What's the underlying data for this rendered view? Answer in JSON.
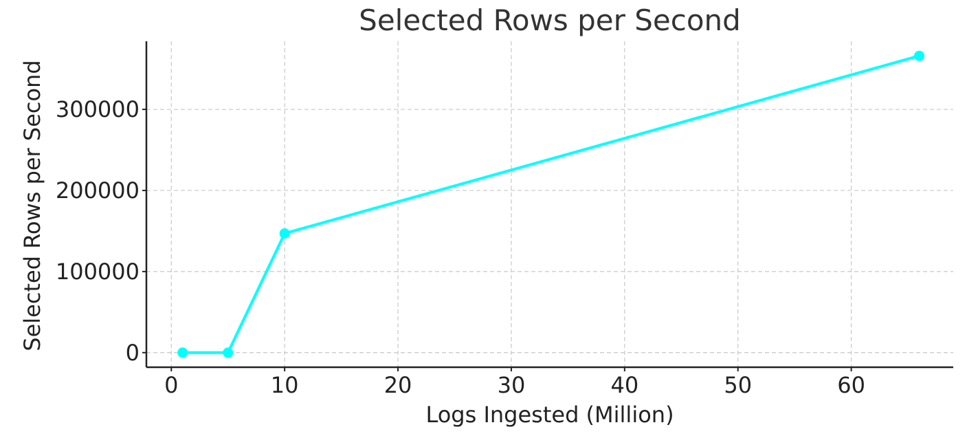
{
  "chart_data": {
    "type": "line",
    "title": "Selected Rows per Second",
    "xlabel": "Logs Ingested (Million)",
    "ylabel": "Selected Rows per Second",
    "x": [
      1,
      5,
      10,
      66
    ],
    "series": [
      {
        "values": [
          0,
          0,
          147000,
          366000
        ]
      }
    ],
    "xlim": [
      -2.2,
      69
    ],
    "ylim": [
      -18000,
      384000
    ],
    "xticks": [
      0,
      10,
      20,
      30,
      40,
      50,
      60
    ],
    "xtick_labels": [
      "0",
      "10",
      "20",
      "30",
      "40",
      "50",
      "60"
    ],
    "yticks": [
      0,
      100000,
      200000,
      300000
    ],
    "ytick_labels": [
      "0",
      "100000",
      "200000",
      "300000"
    ],
    "grid": true,
    "markers": true,
    "colors": {
      "series": "#00FFFF",
      "grid": "#c8c8c8",
      "text": "#222222",
      "title": "#333333"
    }
  }
}
